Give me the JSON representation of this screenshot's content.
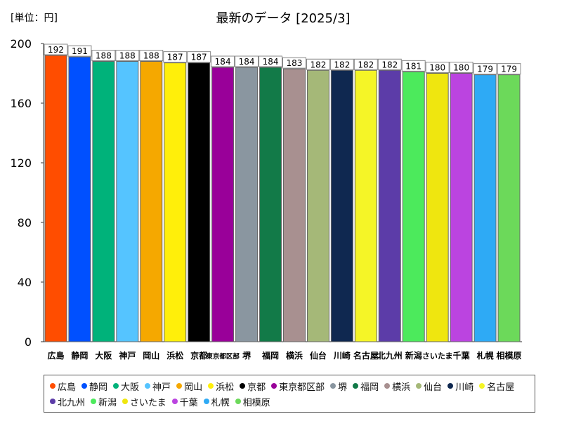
{
  "chart_data": {
    "type": "bar",
    "title": "最新のデータ [2025/3]",
    "unit_label": "[単位：円]",
    "ylim": [
      0,
      200
    ],
    "yticks": [
      0,
      40,
      80,
      120,
      160,
      200
    ],
    "grid": false,
    "legend_position": "bottom",
    "categories": [
      "広島",
      "静岡",
      "大阪",
      "神戸",
      "岡山",
      "浜松",
      "京都",
      "東京都区部",
      "堺",
      "福岡",
      "横浜",
      "仙台",
      "川崎",
      "名古屋",
      "北九州",
      "新潟",
      "さいたま",
      "千葉",
      "札幌",
      "相模原"
    ],
    "values": [
      192,
      191,
      188,
      188,
      188,
      187,
      187,
      184,
      184,
      184,
      183,
      182,
      182,
      182,
      182,
      181,
      180,
      180,
      179,
      179
    ],
    "colors": [
      "#ff4d00",
      "#0050ff",
      "#00b27a",
      "#55c4ff",
      "#f5a800",
      "#ffef0a",
      "#000000",
      "#990099",
      "#8a96a0",
      "#127a48",
      "#a89090",
      "#a5b878",
      "#0f2850",
      "#f5f527",
      "#5c3ca8",
      "#4cea5c",
      "#efe60f",
      "#bb44e0",
      "#2eaaf5",
      "#6cd95a"
    ]
  }
}
